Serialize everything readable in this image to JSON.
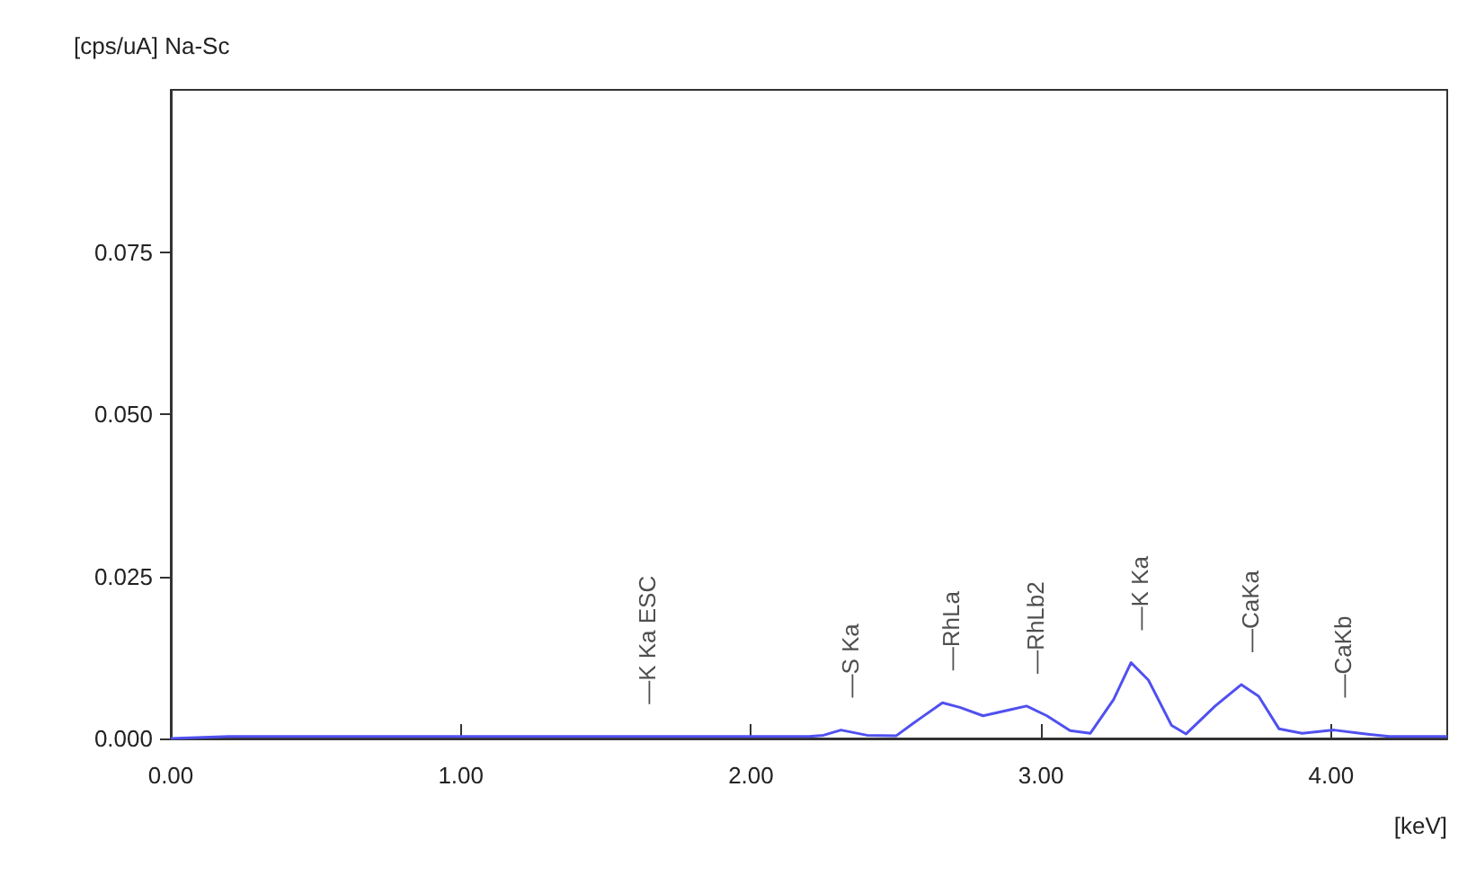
{
  "chart_data": {
    "type": "line",
    "title": "[cps/uA] Na-Sc",
    "xlabel": "[keV]",
    "xlim": [
      0,
      4.4
    ],
    "xticks": [
      {
        "value": 0,
        "label": "0.00"
      },
      {
        "value": 1,
        "label": "1.00"
      },
      {
        "value": 2,
        "label": "2.00"
      },
      {
        "value": 3,
        "label": "3.00"
      },
      {
        "value": 4,
        "label": "4.00"
      }
    ],
    "ylim": [
      0,
      0.1
    ],
    "yticks": [
      {
        "value": 0,
        "label": "0.000"
      },
      {
        "value": 0.025,
        "label": "0.025"
      },
      {
        "value": 0.05,
        "label": "0.050"
      },
      {
        "value": 0.075,
        "label": "0.075"
      }
    ],
    "grid": false,
    "marker": "none",
    "line_style": "solid",
    "series": [
      {
        "color": "#5050f0",
        "x": [
          0,
          0.2,
          1,
          1.61,
          2,
          2.2,
          2.25,
          2.31,
          2.4,
          2.5,
          2.58,
          2.66,
          2.72,
          2.8,
          2.9,
          2.95,
          3.02,
          3.1,
          3.17,
          3.25,
          3.31,
          3.37,
          3.45,
          3.5,
          3.6,
          3.69,
          3.75,
          3.82,
          3.9,
          4.01,
          4.1,
          4.2,
          4.4
        ],
        "values": [
          0,
          0.0003,
          0.0003,
          0.0003,
          0.0003,
          0.0003,
          0.0005,
          0.0013,
          0.0005,
          0.0004,
          0.003,
          0.0055,
          0.0048,
          0.0035,
          0.0045,
          0.005,
          0.0035,
          0.0012,
          0.0008,
          0.006,
          0.0117,
          0.009,
          0.002,
          0.0007,
          0.005,
          0.0083,
          0.0065,
          0.0015,
          0.0008,
          0.0013,
          0.0008,
          0.0003,
          0.0003
        ]
      }
    ],
    "annotations": [
      {
        "text": "—K Ka ESC",
        "x": 1.61,
        "y": 0.0003
      },
      {
        "text": "—S Ka",
        "x": 2.31,
        "y": 0.0013
      },
      {
        "text": "—RhLa",
        "x": 2.66,
        "y": 0.0055
      },
      {
        "text": "—RhLb2",
        "x": 2.95,
        "y": 0.005
      },
      {
        "text": "—K Ka",
        "x": 3.31,
        "y": 0.0117
      },
      {
        "text": "—CaKa",
        "x": 3.69,
        "y": 0.0083
      },
      {
        "text": "—CaKb",
        "x": 4.01,
        "y": 0.0013
      }
    ]
  }
}
